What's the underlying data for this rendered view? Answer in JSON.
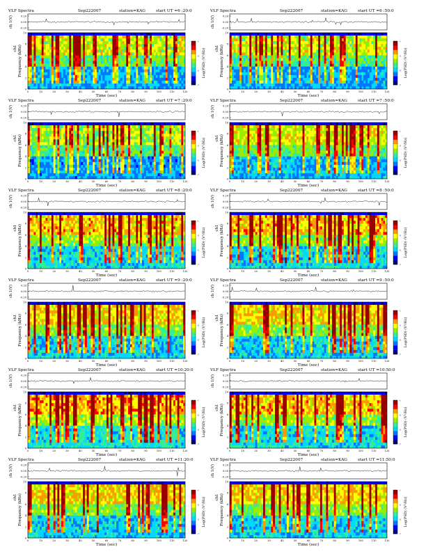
{
  "page_title": "VLF Spectra",
  "chart_data": [
    {
      "type": "heatmap",
      "header": {
        "title": "VLF Spectra",
        "date": "Sep222007",
        "station": "station=KAG",
        "start": "start  UT =6 :20:0"
      },
      "ts_label": "ch 1(V)",
      "ts_ticks": [
        "0.20",
        "0.00",
        "-0.20"
      ],
      "ylabel": "Frequency (kHz)",
      "ylabel2": "ch1",
      "ytick_labels": [
        "0",
        "2",
        "4",
        "6",
        "8",
        "10"
      ],
      "xlabel": "Time  (sec)",
      "xtick_labels": [
        "0",
        "10",
        "20",
        "30",
        "40",
        "50",
        "60",
        "70",
        "80",
        "90",
        "100",
        "110",
        "120"
      ],
      "xlim": [
        0,
        120
      ],
      "ylim": [
        0,
        10
      ],
      "colorbar_label": "Log(PSD) (V²/Hz)",
      "colorbar_ticks": [
        "-1",
        "-3",
        "-5",
        "-7"
      ],
      "colorscale": [
        "#00007a",
        "#0000ff",
        "#0077ff",
        "#00d8ff",
        "#33ee99",
        "#99ee00",
        "#ffff00",
        "#ff9900",
        "#ff0000",
        "#990000"
      ],
      "level": 0.35
    },
    {
      "type": "heatmap",
      "header": {
        "title": "VLF Spectra",
        "date": "Sep222007",
        "station": "station=KAG",
        "start": "start  UT =6 :50:0"
      },
      "ts_label": "ch 1(V)",
      "ts_ticks": [
        "0.20",
        "0.00",
        "-0.20"
      ],
      "ylabel": "Frequency (kHz)",
      "ylabel2": "ch1",
      "ytick_labels": [
        "0",
        "2",
        "4",
        "6",
        "8",
        "10"
      ],
      "xlabel": "Time  (sec)",
      "xtick_labels": [
        "0",
        "10",
        "20",
        "30",
        "40",
        "50",
        "60",
        "70",
        "80",
        "90",
        "100",
        "110",
        "120"
      ],
      "xlim": [
        0,
        120
      ],
      "ylim": [
        0,
        10
      ],
      "colorbar_label": "Log(PSD) (V²/Hz)",
      "colorbar_ticks": [
        "-1",
        "-3",
        "-5",
        "-7"
      ],
      "colorscale": [
        "#00007a",
        "#0000ff",
        "#0077ff",
        "#00d8ff",
        "#33ee99",
        "#99ee00",
        "#ffff00",
        "#ff9900",
        "#ff0000",
        "#990000"
      ],
      "level": 0.35
    },
    {
      "type": "heatmap",
      "header": {
        "title": "VLF Spectra",
        "date": "Sep222007",
        "station": "station=KAG",
        "start": "start  UT =7 :20:0"
      },
      "ts_label": "ch 1(V)",
      "ts_ticks": [
        "0.20",
        "0.00",
        "-0.20"
      ],
      "ylabel": "Frequency (kHz)",
      "ylabel2": "ch1",
      "ytick_labels": [
        "0",
        "2",
        "4",
        "6",
        "8",
        "10"
      ],
      "xlabel": "Time  (sec)",
      "xtick_labels": [
        "0",
        "10",
        "20",
        "30",
        "40",
        "50",
        "60",
        "70",
        "80",
        "90",
        "100",
        "110",
        "120"
      ],
      "xlim": [
        0,
        120
      ],
      "ylim": [
        0,
        10
      ],
      "colorbar_label": "Log(PSD) (V²/Hz)",
      "colorbar_ticks": [
        "-1",
        "-3",
        "-5",
        "-7"
      ],
      "colorscale": [
        "#00007a",
        "#0000ff",
        "#0077ff",
        "#00d8ff",
        "#33ee99",
        "#99ee00",
        "#ffff00",
        "#ff9900",
        "#ff0000",
        "#990000"
      ],
      "level": 0.3
    },
    {
      "type": "heatmap",
      "header": {
        "title": "VLF Spectra",
        "date": "Sep222007",
        "station": "station=KAG",
        "start": "start  UT =7 :50:0"
      },
      "ts_label": "ch 1(V)",
      "ts_ticks": [
        "0.20",
        "0.00",
        "-0.20"
      ],
      "ylabel": "Frequency (kHz)",
      "ylabel2": "ch1",
      "ytick_labels": [
        "0",
        "2",
        "4",
        "6",
        "8",
        "10"
      ],
      "xlabel": "Time  (sec)",
      "xtick_labels": [
        "0",
        "10",
        "20",
        "30",
        "40",
        "50",
        "60",
        "70",
        "80",
        "90",
        "100",
        "110",
        "120"
      ],
      "xlim": [
        0,
        120
      ],
      "ylim": [
        0,
        10
      ],
      "colorbar_label": "Log(PSD) (V²/Hz)",
      "colorbar_ticks": [
        "-1",
        "-3",
        "-5",
        "-7"
      ],
      "colorscale": [
        "#00007a",
        "#0000ff",
        "#0077ff",
        "#00d8ff",
        "#33ee99",
        "#99ee00",
        "#ffff00",
        "#ff9900",
        "#ff0000",
        "#990000"
      ],
      "level": 0.4
    },
    {
      "type": "heatmap",
      "header": {
        "title": "VLF Spectra",
        "date": "Sep222007",
        "station": "station=KAG",
        "start": "start  UT =8 :20:0"
      },
      "ts_label": "ch 1(V)",
      "ts_ticks": [
        "0.20",
        "0.00",
        "-0.20"
      ],
      "ylabel": "Frequency (kHz)",
      "ylabel2": "ch1",
      "ytick_labels": [
        "0",
        "2",
        "4",
        "6",
        "8",
        "10"
      ],
      "xlabel": "Time  (sec)",
      "xtick_labels": [
        "0",
        "10",
        "20",
        "30",
        "40",
        "50",
        "60",
        "70",
        "80",
        "90",
        "100",
        "110",
        "120"
      ],
      "xlim": [
        0,
        120
      ],
      "ylim": [
        0,
        10
      ],
      "colorbar_label": "Log(PSD) (V²/Hz)",
      "colorbar_ticks": [
        "-1",
        "-3",
        "-5",
        "-7"
      ],
      "colorscale": [
        "#00007a",
        "#0000ff",
        "#0077ff",
        "#00d8ff",
        "#33ee99",
        "#99ee00",
        "#ffff00",
        "#ff9900",
        "#ff0000",
        "#990000"
      ],
      "level": 0.55
    },
    {
      "type": "heatmap",
      "header": {
        "title": "VLF Spectra",
        "date": "Sep222007",
        "station": "station=KAG",
        "start": "start  UT =8 :50:0"
      },
      "ts_label": "ch 1(V)",
      "ts_ticks": [
        "0.20",
        "0.00",
        "-0.20"
      ],
      "ylabel": "Frequency (kHz)",
      "ylabel2": "ch1",
      "ytick_labels": [
        "0",
        "2",
        "4",
        "6",
        "8",
        "10"
      ],
      "xlabel": "Time  (sec)",
      "xtick_labels": [
        "0",
        "10",
        "20",
        "30",
        "40",
        "50",
        "60",
        "70",
        "80",
        "90",
        "100",
        "110",
        "120"
      ],
      "xlim": [
        0,
        120
      ],
      "ylim": [
        0,
        10
      ],
      "colorbar_label": "Log(PSD) (V²/Hz)",
      "colorbar_ticks": [
        "-1",
        "-3",
        "-5",
        "-7"
      ],
      "colorscale": [
        "#00007a",
        "#0000ff",
        "#0077ff",
        "#00d8ff",
        "#33ee99",
        "#99ee00",
        "#ffff00",
        "#ff9900",
        "#ff0000",
        "#990000"
      ],
      "level": 0.55
    },
    {
      "type": "heatmap",
      "header": {
        "title": "VLF Spectra",
        "date": "Sep222007",
        "station": "station=KAG",
        "start": "start  UT =9 :20:0"
      },
      "ts_label": "ch 1(V)",
      "ts_ticks": [
        "0.20",
        "0.00",
        "-0.20"
      ],
      "ylabel": "Frequency (kHz)",
      "ylabel2": "ch1",
      "ytick_labels": [
        "0",
        "2",
        "4",
        "6",
        "8",
        "10"
      ],
      "xlabel": "Time  (sec)",
      "xtick_labels": [
        "0",
        "10",
        "20",
        "30",
        "40",
        "50",
        "60",
        "70",
        "80",
        "90",
        "100",
        "110",
        "120"
      ],
      "xlim": [
        0,
        120
      ],
      "ylim": [
        0,
        10
      ],
      "colorbar_label": "Log(PSD) (V²/Hz)",
      "colorbar_ticks": [
        "-1",
        "-3",
        "-5",
        "-7"
      ],
      "colorscale": [
        "#00007a",
        "#0000ff",
        "#0077ff",
        "#00d8ff",
        "#33ee99",
        "#99ee00",
        "#ffff00",
        "#ff9900",
        "#ff0000",
        "#990000"
      ],
      "level": 0.5
    },
    {
      "type": "heatmap",
      "header": {
        "title": "VLF Spectra",
        "date": "Sep222007",
        "station": "station=KAG",
        "start": "start  UT =9 :50:0"
      },
      "ts_label": "ch 1(V)",
      "ts_ticks": [
        "0.20",
        "0.00",
        "-0.20"
      ],
      "ylabel": "Frequency (kHz)",
      "ylabel2": "ch1",
      "ytick_labels": [
        "0",
        "2",
        "4",
        "6",
        "8",
        "10"
      ],
      "xlabel": "Time  (sec)",
      "xtick_labels": [
        "0",
        "10",
        "20",
        "30",
        "40",
        "50",
        "60",
        "70",
        "80",
        "90",
        "100",
        "110",
        "120"
      ],
      "xlim": [
        0,
        120
      ],
      "ylim": [
        0,
        10
      ],
      "colorbar_label": "Log(PSD) (V²/Hz)",
      "colorbar_ticks": [
        "-1",
        "-3",
        "-5",
        "-7"
      ],
      "colorscale": [
        "#00007a",
        "#0000ff",
        "#0077ff",
        "#00d8ff",
        "#33ee99",
        "#99ee00",
        "#ffff00",
        "#ff9900",
        "#ff0000",
        "#990000"
      ],
      "level": 0.5
    },
    {
      "type": "heatmap",
      "header": {
        "title": "VLF Spectra",
        "date": "Sep222007",
        "station": "station=KAG",
        "start": "start  UT =10:20:0"
      },
      "ts_label": "ch 1(V)",
      "ts_ticks": [
        "0.20",
        "0.00",
        "-0.20"
      ],
      "ylabel": "Frequency (kHz)",
      "ylabel2": "ch1",
      "ytick_labels": [
        "0",
        "2",
        "4",
        "6",
        "8",
        "10"
      ],
      "xlabel": "Time  (sec)",
      "xtick_labels": [
        "0",
        "10",
        "20",
        "30",
        "40",
        "50",
        "60",
        "70",
        "80",
        "90",
        "100",
        "110",
        "120"
      ],
      "xlim": [
        0,
        120
      ],
      "ylim": [
        0,
        10
      ],
      "colorbar_label": "Log(PSD) (V²/Hz)",
      "colorbar_ticks": [
        "-1",
        "-3",
        "-5",
        "-7"
      ],
      "colorscale": [
        "#00007a",
        "#0000ff",
        "#0077ff",
        "#00d8ff",
        "#33ee99",
        "#99ee00",
        "#ffff00",
        "#ff9900",
        "#ff0000",
        "#990000"
      ],
      "level": 0.6
    },
    {
      "type": "heatmap",
      "header": {
        "title": "VLF Spectra",
        "date": "Sep222007",
        "station": "station=KAG",
        "start": "start  UT =10:50:0"
      },
      "ts_label": "ch 1(V)",
      "ts_ticks": [
        "0.20",
        "0.00",
        "-0.20"
      ],
      "ylabel": "Frequency (kHz)",
      "ylabel2": "ch1",
      "ytick_labels": [
        "0",
        "2",
        "4",
        "6",
        "8",
        "10"
      ],
      "xlabel": "Time  (sec)",
      "xtick_labels": [
        "0",
        "10",
        "20",
        "30",
        "40",
        "50",
        "60",
        "70",
        "80",
        "90",
        "100",
        "110",
        "120"
      ],
      "xlim": [
        0,
        120
      ],
      "ylim": [
        0,
        10
      ],
      "colorbar_label": "Log(PSD) (V²/Hz)",
      "colorbar_ticks": [
        "-1",
        "-3",
        "-5",
        "-7"
      ],
      "colorscale": [
        "#00007a",
        "#0000ff",
        "#0077ff",
        "#00d8ff",
        "#33ee99",
        "#99ee00",
        "#ffff00",
        "#ff9900",
        "#ff0000",
        "#990000"
      ],
      "level": 0.55
    },
    {
      "type": "heatmap",
      "header": {
        "title": "VLF Spectra",
        "date": "Sep222007",
        "station": "station=KAG",
        "start": "start  UT =11:20:0"
      },
      "ts_label": "ch 1(V)",
      "ts_ticks": [
        "0.20",
        "0.00",
        "-0.20"
      ],
      "ylabel": "Frequency (kHz)",
      "ylabel2": "ch1",
      "ytick_labels": [
        "0",
        "2",
        "4",
        "6",
        "8",
        "10"
      ],
      "xlabel": "Time  (sec)",
      "xtick_labels": [
        "0",
        "10",
        "20",
        "30",
        "40",
        "50",
        "60",
        "70",
        "80",
        "90",
        "100",
        "110",
        "120"
      ],
      "xlim": [
        0,
        120
      ],
      "ylim": [
        0,
        10
      ],
      "colorbar_label": "Log(PSD) (V²/Hz)",
      "colorbar_ticks": [
        "-1",
        "-3",
        "-5",
        "-7"
      ],
      "colorscale": [
        "#00007a",
        "#0000ff",
        "#0077ff",
        "#00d8ff",
        "#33ee99",
        "#99ee00",
        "#ffff00",
        "#ff9900",
        "#ff0000",
        "#990000"
      ],
      "level": 0.5
    },
    {
      "type": "heatmap",
      "header": {
        "title": "VLF Spectra",
        "date": "Sep222007",
        "station": "station=KAG",
        "start": "start  UT =11:50:0"
      },
      "ts_label": "ch 1(V)",
      "ts_ticks": [
        "0.20",
        "0.00",
        "-0.20"
      ],
      "ylabel": "Frequency (kHz)",
      "ylabel2": "ch1",
      "ytick_labels": [
        "0",
        "2",
        "4",
        "6",
        "8",
        "10"
      ],
      "xlabel": "Time  (sec)",
      "xtick_labels": [
        "0",
        "10",
        "20",
        "30",
        "40",
        "50",
        "60",
        "70",
        "80",
        "90",
        "100",
        "110",
        "120"
      ],
      "xlim": [
        0,
        120
      ],
      "ylim": [
        0,
        10
      ],
      "colorbar_label": "Log(PSD) (V²/Hz)",
      "colorbar_ticks": [
        "-1",
        "-3",
        "-5",
        "-7"
      ],
      "colorscale": [
        "#00007a",
        "#0000ff",
        "#0077ff",
        "#00d8ff",
        "#33ee99",
        "#99ee00",
        "#ffff00",
        "#ff9900",
        "#ff0000",
        "#990000"
      ],
      "level": 0.5
    }
  ]
}
